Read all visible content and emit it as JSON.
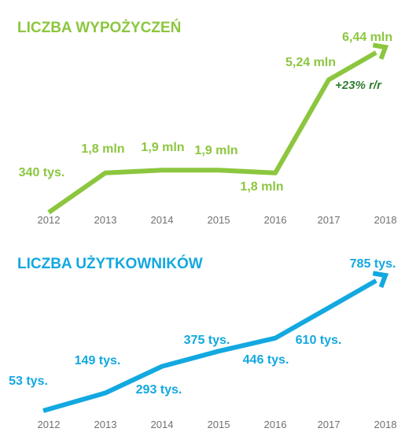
{
  "colors": {
    "green": "#8cc63f",
    "blue": "#13a8e0",
    "dark_green": "#2e7d32",
    "tick": "#707070"
  },
  "chart_data": [
    {
      "type": "line",
      "title": "LICZBA WYPOŻYCZEŃ",
      "categories": [
        "2012",
        "2013",
        "2014",
        "2015",
        "2016",
        "2017",
        "2018"
      ],
      "values": [
        0.34,
        1.8,
        1.9,
        1.9,
        1.8,
        5.24,
        6.44
      ],
      "labels": [
        "340 tys.",
        "1,8 mln",
        "1,9 mln",
        "1,9 mln",
        "1,8 mln",
        "5,24 mln",
        "6,44 mln"
      ],
      "annotation": "+23% r/r",
      "grid": false,
      "legend": "none"
    },
    {
      "type": "line",
      "title": "LICZBA UŻYTKOWNIKÓW",
      "categories": [
        "2012",
        "2013",
        "2014",
        "2015",
        "2016",
        "2017",
        "2018"
      ],
      "values": [
        53,
        149,
        293,
        375,
        446,
        610,
        785
      ],
      "labels": [
        "53 tys.",
        "149 tys.",
        "293 tys.",
        "375 tys.",
        "446 tys.",
        "610 tys.",
        "785 tys."
      ],
      "grid": false,
      "legend": "none"
    }
  ]
}
